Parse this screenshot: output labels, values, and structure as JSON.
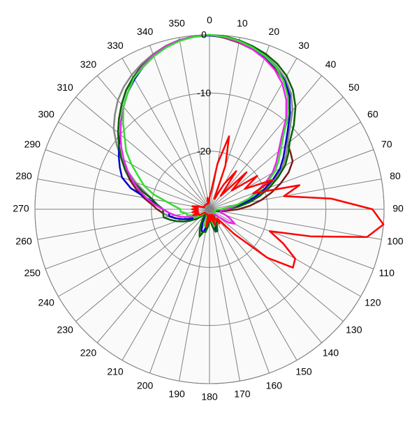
{
  "chart_data": {
    "type": "polar",
    "x": [
      0,
      5,
      10,
      15,
      20,
      25,
      30,
      35,
      40,
      45,
      50,
      55,
      60,
      65,
      70,
      75,
      80,
      85,
      90,
      95,
      100,
      105,
      110,
      115,
      120,
      125,
      130,
      135,
      140,
      145,
      150,
      155,
      160,
      165,
      170,
      175,
      180,
      185,
      190,
      195,
      200,
      205,
      210,
      215,
      220,
      225,
      230,
      235,
      240,
      245,
      250,
      255,
      260,
      265,
      270,
      275,
      280,
      285,
      290,
      295,
      300,
      305,
      310,
      315,
      320,
      325,
      330,
      335,
      340,
      345,
      350,
      355
    ],
    "xticks": [
      0,
      10,
      20,
      30,
      40,
      50,
      60,
      70,
      80,
      90,
      100,
      110,
      120,
      130,
      140,
      150,
      160,
      170,
      180,
      190,
      200,
      210,
      220,
      230,
      240,
      250,
      260,
      270,
      280,
      290,
      300,
      310,
      320,
      330,
      340,
      350
    ],
    "ylim": [
      -30,
      0
    ],
    "yticks": [
      -20,
      -10,
      0
    ],
    "grid": true,
    "series": [
      {
        "color": "#7a1a1a",
        "values": [
          0,
          -0.4,
          -0.9,
          -1.5,
          -2.2,
          -3.2,
          -4.5,
          -6.2,
          -8.5,
          -11,
          -12.5,
          -13,
          -13.5,
          -15,
          -17,
          -19,
          -21,
          -23,
          -25,
          -27,
          -28,
          -29,
          -29,
          -29,
          -29,
          -29,
          -29,
          -29,
          -29,
          -29,
          -29,
          -28,
          -28,
          -27,
          -28,
          -29,
          -29,
          -28,
          -27,
          -27,
          -28,
          -29,
          -29,
          -29,
          -29,
          -29,
          -28,
          -27,
          -26,
          -26,
          -25,
          -24,
          -23,
          -22,
          -21,
          -20,
          -18.5,
          -17,
          -15.5,
          -14,
          -12.5,
          -11,
          -9.5,
          -8,
          -6.5,
          -5,
          -3.8,
          -2.6,
          -1.7,
          -1,
          -0.5,
          -0.1
        ]
      },
      {
        "color": "#888888",
        "values": [
          -0.1,
          -0.3,
          -0.7,
          -1.2,
          -1.9,
          -2.8,
          -4,
          -5.6,
          -7.8,
          -10.5,
          -12.5,
          -14,
          -15.5,
          -17.5,
          -19.5,
          -21.5,
          -23.5,
          -25.5,
          -27,
          -28,
          -28,
          -29,
          -29,
          -29,
          -29,
          -29,
          -29,
          -29,
          -29,
          -29,
          -29,
          -28,
          -28,
          -27,
          -27,
          -28,
          -28,
          -28,
          -27,
          -27,
          -28,
          -28,
          -29,
          -29,
          -29,
          -29,
          -29,
          -28,
          -27,
          -26,
          -25,
          -24,
          -23,
          -22,
          -22,
          -21,
          -20,
          -18.5,
          -16.5,
          -14.5,
          -12.5,
          -10.5,
          -8.5,
          -7,
          -5.5,
          -4.3,
          -3.3,
          -2.4,
          -1.6,
          -0.9,
          -0.4,
          -0.1
        ]
      },
      {
        "color": "#0000cc",
        "values": [
          -0.1,
          -0.3,
          -0.7,
          -1.3,
          -2.1,
          -3.1,
          -4.3,
          -6,
          -8.5,
          -11,
          -13,
          -14.5,
          -16,
          -18,
          -20,
          -22,
          -24,
          -26,
          -27,
          -28,
          -29,
          -29,
          -29,
          -29,
          -29,
          -29,
          -29,
          -29,
          -29,
          -29,
          -28,
          -27,
          -27,
          -26,
          -27,
          -28,
          -29,
          -28,
          -27,
          -26,
          -26,
          -27,
          -28,
          -29,
          -29,
          -29,
          -29,
          -28,
          -27,
          -26,
          -25,
          -24,
          -23,
          -23,
          -22,
          -21,
          -19,
          -16,
          -14,
          -13,
          -12,
          -11,
          -10,
          -8.5,
          -7,
          -5.5,
          -4.2,
          -3,
          -2,
          -1.1,
          -0.5,
          -0.2
        ]
      },
      {
        "color": "#006400",
        "values": [
          0,
          -0.1,
          -0.5,
          -1,
          -1.6,
          -2.4,
          -3.5,
          -5,
          -7,
          -9.5,
          -12,
          -13.5,
          -15,
          -17,
          -19,
          -21,
          -23,
          -25,
          -27,
          -28,
          -28,
          -29,
          -29,
          -29,
          -29,
          -29,
          -29,
          -29,
          -29,
          -29,
          -28,
          -27,
          -26,
          -26,
          -27,
          -28,
          -28,
          -27,
          -26,
          -26,
          -25,
          -26,
          -27,
          -28,
          -29,
          -29,
          -28,
          -27,
          -26,
          -25,
          -24,
          -23,
          -22,
          -22,
          -22,
          -21,
          -20,
          -18,
          -16,
          -14,
          -12.5,
          -11,
          -9.5,
          -8,
          -6.5,
          -5,
          -3.8,
          -2.7,
          -1.8,
          -1,
          -0.5,
          -0.2
        ]
      },
      {
        "color": "#ee22ee",
        "values": [
          0,
          -0.3,
          -0.8,
          -1.5,
          -2.4,
          -3.5,
          -5,
          -7,
          -9.5,
          -12.5,
          -14.5,
          -16,
          -17.5,
          -19.5,
          -21.5,
          -23,
          -25,
          -26,
          -27,
          -28,
          -28,
          -28,
          -27,
          -26,
          -25,
          -26,
          -28,
          -29,
          -29,
          -29,
          -29,
          -29,
          -29,
          -29,
          -29,
          -29,
          -29,
          -29,
          -29,
          -29,
          -29,
          -29,
          -29,
          -29,
          -29,
          -29,
          -29,
          -29,
          -28,
          -27,
          -26,
          -25,
          -24,
          -23,
          -22,
          -20.5,
          -19,
          -17.5,
          -16,
          -14.5,
          -13,
          -11.5,
          -10,
          -8.5,
          -7,
          -5.5,
          -4,
          -2.8,
          -1.8,
          -1,
          -0.5,
          -0.1
        ]
      },
      {
        "color": "#33dd33",
        "values": [
          0,
          -0.2,
          -0.6,
          -1.2,
          -2,
          -3,
          -4.5,
          -6.5,
          -9,
          -12,
          -14,
          -15.5,
          -17,
          -19,
          -21,
          -23,
          -25,
          -27,
          -28,
          -29,
          -29,
          -29,
          -29,
          -29,
          -29,
          -29,
          -29,
          -29,
          -29,
          -29,
          -29,
          -28,
          -27,
          -27,
          -28,
          -29,
          -29,
          -28,
          -27,
          -27,
          -28,
          -29,
          -29,
          -29,
          -29,
          -29,
          -29,
          -28,
          -27,
          -27,
          -27,
          -26,
          -26,
          -25,
          -25,
          -24,
          -22.5,
          -20,
          -18,
          -16.5,
          -14.5,
          -12.5,
          -11,
          -9,
          -7,
          -5.5,
          -4,
          -3,
          -2,
          -1.2,
          -0.6,
          -0.2
        ]
      },
      {
        "color": "#ff0000",
        "values": [
          -28,
          -27,
          -22,
          -17,
          -22,
          -28,
          -25,
          -22,
          -27,
          -21,
          -25,
          -20,
          -23,
          -18,
          -22,
          -14,
          -17,
          -9,
          -2,
          0,
          -2.5,
          -12,
          -19,
          -16,
          -13,
          -12.5,
          -17,
          -24,
          -28,
          -27,
          -28,
          -29,
          -27,
          -28,
          -29,
          -28,
          -29,
          -28,
          -27,
          -29,
          -29,
          -29,
          -29,
          -29,
          -29,
          -29,
          -29,
          -29,
          -28,
          -28,
          -27,
          -28,
          -27,
          -28,
          -27,
          -28,
          -27,
          -28,
          -29,
          -29,
          -29,
          -29,
          -29,
          -29,
          -29,
          -29,
          -29,
          -29,
          -29,
          -29,
          -28,
          -29
        ]
      }
    ]
  }
}
